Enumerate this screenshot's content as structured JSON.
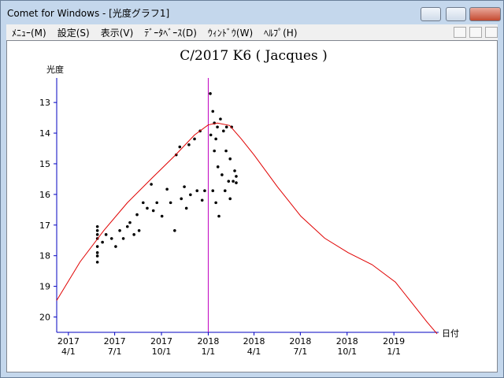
{
  "window": {
    "title": "Comet for Windows - [光度グラフ1]"
  },
  "menu": {
    "items": [
      "ﾒﾆｭｰ(M)",
      "設定(S)",
      "表示(V)",
      "ﾃﾞｰﾀﾍﾞｰｽ(D)",
      "ｳｨﾝﾄﾞｳ(W)",
      "ﾍﾙﾌﾟ(H)"
    ]
  },
  "chart_data": {
    "type": "scatter",
    "title": "C/2017 K6 ( Jacques )",
    "y_label": "光度",
    "x_label": "日付",
    "xlim": [
      "2017-03-09",
      "2019-03-30"
    ],
    "ylim": [
      20.5,
      12.2
    ],
    "y_inverted": true,
    "yticks": [
      13,
      14,
      15,
      16,
      17,
      18,
      19,
      20
    ],
    "xticks": [
      {
        "value": "2017-04-01",
        "label": [
          "2017",
          "4/1"
        ]
      },
      {
        "value": "2017-07-01",
        "label": [
          "2017",
          "7/1"
        ]
      },
      {
        "value": "2017-10-01",
        "label": [
          "2017",
          "10/1"
        ]
      },
      {
        "value": "2018-01-01",
        "label": [
          "2018",
          "1/1"
        ]
      },
      {
        "value": "2018-04-01",
        "label": [
          "2018",
          "4/1"
        ]
      },
      {
        "value": "2018-07-01",
        "label": [
          "2018",
          "7/1"
        ]
      },
      {
        "value": "2018-10-01",
        "label": [
          "2018",
          "10/1"
        ]
      },
      {
        "value": "2019-01-01",
        "label": [
          "2019",
          "1/1"
        ]
      }
    ],
    "axis_color": "#0000c0",
    "vline": {
      "x": "2018-01-01",
      "color": "#c000c0"
    },
    "series": [
      {
        "style": "points",
        "color": "#000000",
        "x": [
          "2017-05-28",
          "2017-05-28",
          "2017-05-28",
          "2017-05-28",
          "2017-05-28",
          "2017-05-28",
          "2017-05-28",
          "2017-05-28",
          "2017-06-07",
          "2017-06-14",
          "2017-06-25",
          "2017-07-03",
          "2017-07-11",
          "2017-07-18",
          "2017-07-26",
          "2017-07-31",
          "2017-08-08",
          "2017-08-14",
          "2017-08-18",
          "2017-08-26",
          "2017-09-03",
          "2017-09-11",
          "2017-09-15",
          "2017-09-22",
          "2017-10-02",
          "2017-10-12",
          "2017-10-19",
          "2017-10-27",
          "2017-10-30",
          "2017-11-06",
          "2017-11-09",
          "2017-11-15",
          "2017-11-19",
          "2017-11-24",
          "2017-11-27",
          "2017-12-05",
          "2017-12-10",
          "2017-12-16",
          "2017-12-20",
          "2017-12-25",
          "2018-01-05",
          "2018-01-06",
          "2018-01-10",
          "2018-01-10",
          "2018-01-13",
          "2018-01-13",
          "2018-01-16",
          "2018-01-16",
          "2018-01-19",
          "2018-01-20",
          "2018-01-22",
          "2018-01-25",
          "2018-01-28",
          "2018-01-31",
          "2018-02-03",
          "2018-02-05",
          "2018-02-06",
          "2018-02-10",
          "2018-02-13",
          "2018-02-13",
          "2018-02-16",
          "2018-02-19",
          "2018-02-22",
          "2018-02-25",
          "2018-02-25"
        ],
        "values": [
          17.05,
          17.18,
          17.31,
          17.44,
          17.7,
          17.9,
          18.01,
          18.21,
          17.56,
          17.31,
          17.44,
          17.7,
          17.18,
          17.44,
          17.05,
          16.92,
          17.31,
          16.66,
          17.18,
          16.27,
          16.45,
          15.67,
          16.53,
          16.27,
          16.71,
          15.83,
          16.27,
          17.18,
          14.71,
          14.45,
          16.14,
          15.75,
          16.45,
          14.38,
          16.01,
          14.19,
          15.88,
          13.93,
          16.19,
          15.88,
          12.71,
          14.06,
          13.29,
          15.88,
          13.67,
          14.58,
          14.19,
          16.27,
          13.8,
          15.1,
          16.71,
          13.54,
          15.36,
          13.93,
          15.88,
          14.58,
          13.8,
          15.57,
          14.84,
          16.14,
          13.8,
          15.57,
          15.23,
          15.62,
          15.41
        ]
      },
      {
        "style": "line",
        "color": "#e00000",
        "x": [
          "2017-03-09",
          "2017-04-24",
          "2017-06-10",
          "2017-07-26",
          "2017-09-11",
          "2017-10-27",
          "2017-12-05",
          "2018-01-01",
          "2018-01-19",
          "2018-02-12",
          "2018-03-07",
          "2018-04-01",
          "2018-05-17",
          "2018-07-02",
          "2018-08-18",
          "2018-10-03",
          "2018-11-19",
          "2019-01-04",
          "2019-02-04",
          "2019-03-07",
          "2019-03-27"
        ],
        "values": [
          19.46,
          18.2,
          17.17,
          16.27,
          15.49,
          14.74,
          14.06,
          13.73,
          13.67,
          13.75,
          14.19,
          14.71,
          15.75,
          16.71,
          17.43,
          17.9,
          18.29,
          18.86,
          19.51,
          20.16,
          20.55
        ]
      }
    ]
  }
}
